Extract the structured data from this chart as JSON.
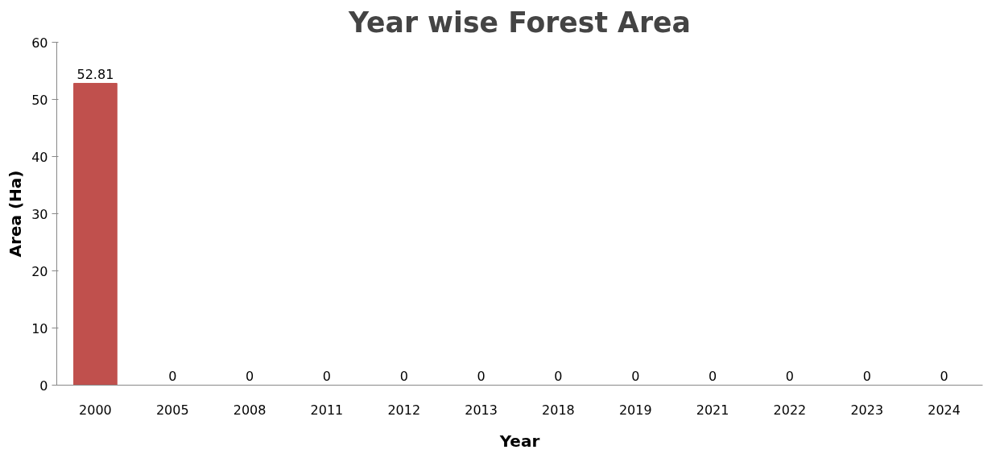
{
  "chart_data": {
    "type": "bar",
    "title": "Year wise Forest Area",
    "xlabel": "Year",
    "ylabel": "Area (Ha)",
    "categories": [
      "2000",
      "2005",
      "2008",
      "2011",
      "2012",
      "2013",
      "2018",
      "2019",
      "2021",
      "2022",
      "2023",
      "2024"
    ],
    "values": [
      52.81,
      0,
      0,
      0,
      0,
      0,
      0,
      0,
      0,
      0,
      0,
      0
    ],
    "color": "#c0504d",
    "ylim": [
      0,
      60
    ],
    "yticks": [
      0,
      10,
      20,
      30,
      40,
      50,
      60
    ],
    "grid": false,
    "data_labels": true
  }
}
